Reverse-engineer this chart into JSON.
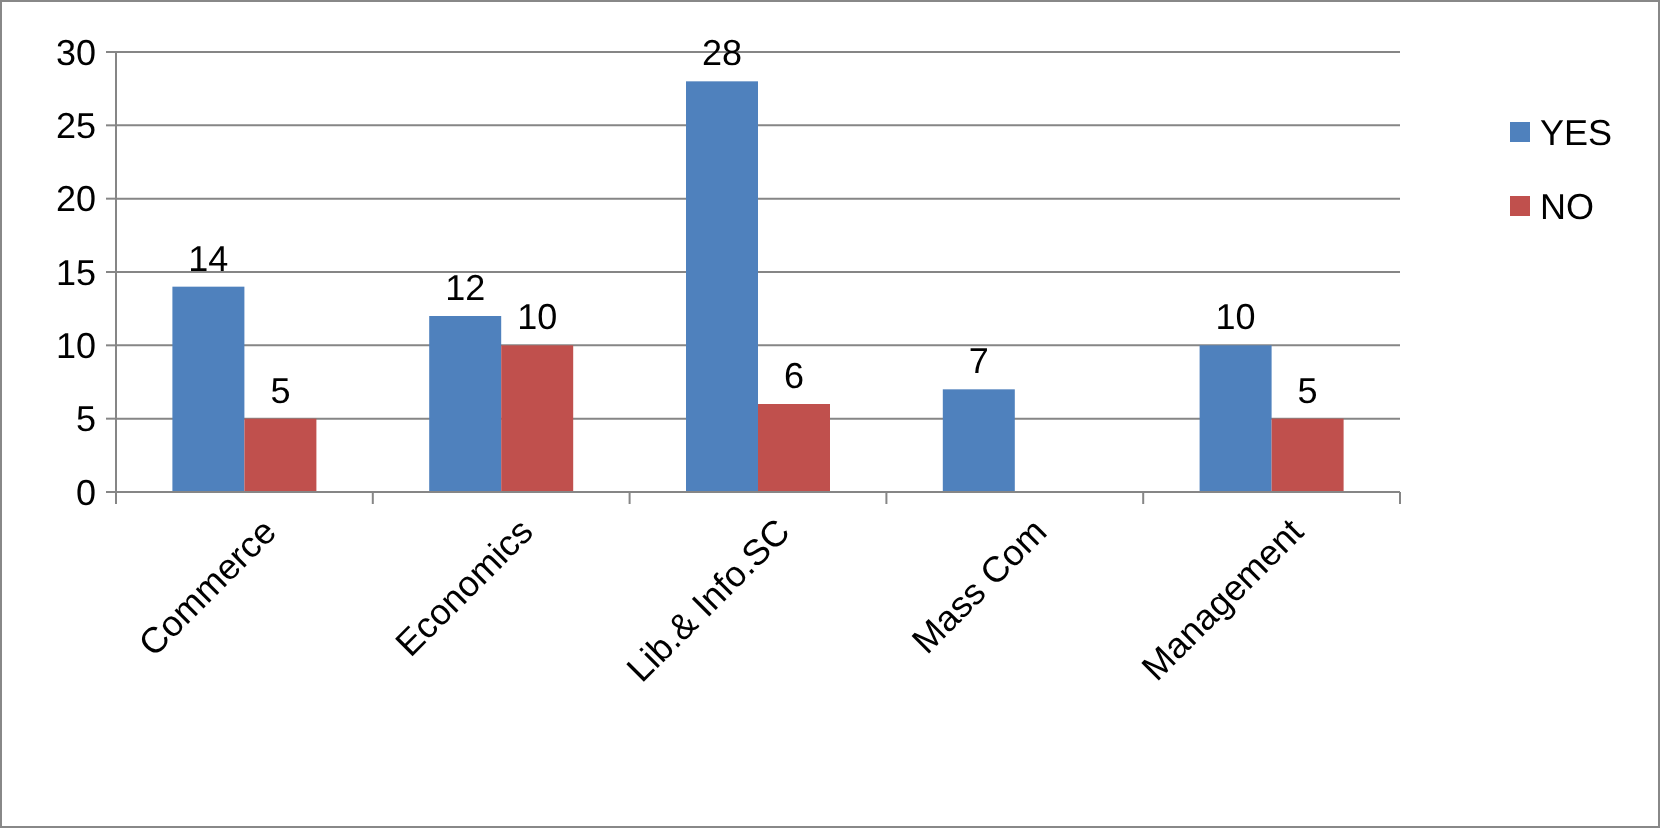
{
  "chart_data": {
    "type": "bar",
    "categories": [
      "Commerce",
      "Economics",
      "Lib.& Info.SC",
      "Mass Com",
      "Management"
    ],
    "series": [
      {
        "name": "YES",
        "color": "#4f81bd",
        "values": [
          14,
          12,
          28,
          7,
          10
        ]
      },
      {
        "name": "NO",
        "color": "#c0504d",
        "values": [
          5,
          10,
          6,
          null,
          5
        ]
      }
    ],
    "ylim": [
      0,
      30
    ],
    "yticks": [
      0,
      5,
      10,
      15,
      20,
      25,
      30
    ],
    "grid": "y",
    "legend": "top right",
    "data_labels": true
  }
}
